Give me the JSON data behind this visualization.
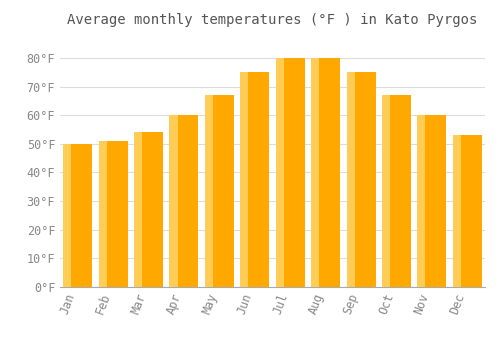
{
  "title": "Average monthly temperatures (°F ) in Kato Pyrgos",
  "months": [
    "Jan",
    "Feb",
    "Mar",
    "Apr",
    "May",
    "Jun",
    "Jul",
    "Aug",
    "Sep",
    "Oct",
    "Nov",
    "Dec"
  ],
  "values": [
    50,
    51,
    54,
    60,
    67,
    75,
    80,
    80,
    75,
    67,
    60,
    53
  ],
  "bar_color_main": "#FFA800",
  "bar_color_light": "#FFCC55",
  "background_color": "#FFFFFF",
  "grid_color": "#DDDDDD",
  "text_color": "#888888",
  "title_color": "#555555",
  "ylim": [
    0,
    88
  ],
  "yticks": [
    0,
    10,
    20,
    30,
    40,
    50,
    60,
    70,
    80
  ],
  "ylabel_suffix": "°F",
  "title_fontsize": 10,
  "tick_fontsize": 8.5,
  "bar_width": 0.82
}
